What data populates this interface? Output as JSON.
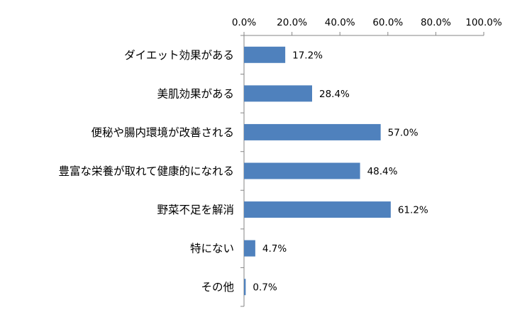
{
  "chart_data": {
    "type": "bar",
    "orientation": "horizontal",
    "categories": [
      "ダイエット効果がある",
      "美肌効果がある",
      "便秘や腸内環境が改善される",
      "豊富な栄養が取れて健康的になれる",
      "野菜不足を解消",
      "特にない",
      "その他"
    ],
    "values": [
      17.2,
      28.4,
      57.0,
      48.4,
      61.2,
      4.7,
      0.7
    ],
    "value_labels": [
      "17.2%",
      "28.4%",
      "57.0%",
      "48.4%",
      "61.2%",
      "4.7%",
      "0.7%"
    ],
    "xlim": [
      0,
      100
    ],
    "ticks": [
      0,
      20,
      40,
      60,
      80,
      100
    ],
    "tick_labels": [
      "0.0%",
      "20.0%",
      "40.0%",
      "60.0%",
      "80.0%",
      "100.0%"
    ],
    "axis_position": "top",
    "grid": false,
    "bar_color": "#4f81bd"
  }
}
